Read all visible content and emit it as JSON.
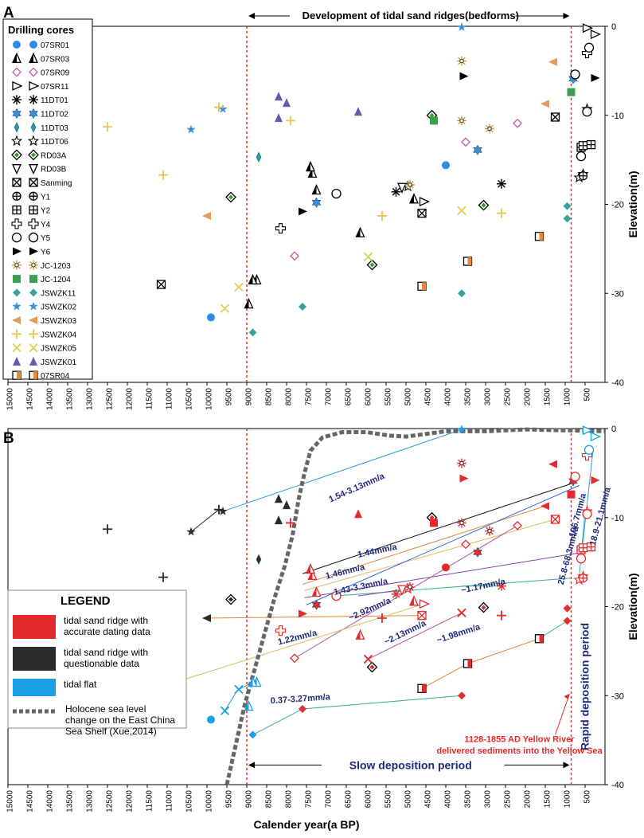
{
  "chart_data": [
    {
      "type": "scatter",
      "panel": "A",
      "title": "Development of tidal sand ridges(bedforms)",
      "xlabel": "",
      "ylabel": "Elevation(m)",
      "xlim": [
        15000,
        0
      ],
      "ylim": [
        -40,
        0
      ],
      "x_ticks": [
        15000,
        14500,
        14000,
        13500,
        13000,
        12500,
        12000,
        11500,
        11000,
        10500,
        10000,
        9500,
        9000,
        8500,
        8000,
        7500,
        7000,
        6500,
        6000,
        5500,
        5000,
        4500,
        4000,
        3500,
        3000,
        2500,
        2000,
        1500,
        1000,
        500
      ],
      "y_ticks": [
        0,
        -10,
        -20,
        -30,
        -40
      ],
      "vlines": [
        9000,
        850
      ],
      "legend_title": "Drilling cores",
      "series": [
        {
          "name": "07SR01",
          "marker": "circle-filled",
          "color": "#2e8ae6",
          "points": [
            [
              9900,
              -32.7
            ],
            [
              4000,
              -15.6
            ]
          ]
        },
        {
          "name": "07SR03",
          "marker": "tri-half",
          "color": "#000000",
          "points": [
            [
              8750,
              -28.5
            ],
            [
              8850,
              -28.5
            ],
            [
              8950,
              -31.2
            ],
            [
              7350,
              -16.5
            ],
            [
              7400,
              -15.8
            ],
            [
              7250,
              -18.4
            ],
            [
              6150,
              -23.2
            ],
            [
              4800,
              -19.4
            ]
          ]
        },
        {
          "name": "07SR09",
          "marker": "diamond-open",
          "color": "#c25aa8",
          "points": [
            [
              7800,
              -25.8
            ],
            [
              3500,
              -13.0
            ],
            [
              2200,
              -10.9
            ]
          ]
        },
        {
          "name": "07SR11",
          "marker": "tri-right-open",
          "color": "#000000",
          "points": [
            [
              4550,
              -19.7
            ],
            [
              450,
              -0.2
            ],
            [
              250,
              -0.9
            ]
          ]
        },
        {
          "name": "11DT01",
          "marker": "asterisk",
          "color": "#000000",
          "points": [
            [
              5250,
              -18.6
            ],
            [
              2600,
              -17.7
            ]
          ]
        },
        {
          "name": "11DT02",
          "marker": "star6-filled",
          "color": "#3b8fd9",
          "points": [
            [
              7250,
              -19.8
            ],
            [
              3200,
              -13.9
            ],
            [
              800,
              -5.9
            ]
          ]
        },
        {
          "name": "11DT03",
          "marker": "thin-diamond",
          "color": "#2a9aa6",
          "points": [
            [
              8700,
              -14.7
            ]
          ]
        },
        {
          "name": "11DT06",
          "marker": "star-open",
          "color": "#000000",
          "points": [
            [
              4950,
              -18.0
            ],
            [
              450,
              -9.3
            ],
            [
              550,
              -16.6
            ],
            [
              650,
              -17.0
            ]
          ]
        },
        {
          "name": "RD03A",
          "marker": "diamond-double",
          "color": "#3e9a3a",
          "points": [
            [
              9400,
              -19.2
            ],
            [
              5850,
              -26.8
            ],
            [
              4350,
              -10.0
            ],
            [
              3050,
              -20.1
            ]
          ]
        },
        {
          "name": "RD03B",
          "marker": "tri-down-open",
          "color": "#000000",
          "points": [
            [
              5100,
              -18.1
            ]
          ]
        },
        {
          "name": "Sanming",
          "marker": "square-x",
          "color": "#000000",
          "points": [
            [
              11150,
              -29.0
            ],
            [
              4600,
              -21.0
            ],
            [
              1250,
              -10.2
            ]
          ]
        },
        {
          "name": "Y1",
          "marker": "circle-plus",
          "color": "#000000",
          "points": [
            [
              550,
              -16.8
            ]
          ]
        },
        {
          "name": "Y2",
          "marker": "square-grid",
          "color": "#000000",
          "points": [
            [
              600,
              -13.6
            ],
            [
              550,
              -13.4
            ],
            [
              350,
              -13.3
            ]
          ]
        },
        {
          "name": "Y4",
          "marker": "plus-thick",
          "color": "#000000",
          "points": [
            [
              8150,
              -22.7
            ],
            [
              450,
              -3.0
            ]
          ]
        },
        {
          "name": "Y5",
          "marker": "circle-open",
          "color": "#000000",
          "points": [
            [
              6750,
              -18.8
            ],
            [
              750,
              -5.4
            ],
            [
              450,
              -9.6
            ],
            [
              400,
              -2.4
            ],
            [
              600,
              -14.6
            ]
          ]
        },
        {
          "name": "Y6",
          "marker": "tri-right-filled",
          "color": "#000000",
          "points": [
            [
              7600,
              -20.8
            ],
            [
              3550,
              -5.6
            ],
            [
              250,
              -5.8
            ]
          ]
        },
        {
          "name": "JC-1203",
          "marker": "sun",
          "color": "#c8a040",
          "points": [
            [
              3600,
              -3.9
            ],
            [
              3600,
              -10.6
            ],
            [
              4900,
              -17.8
            ],
            [
              2900,
              -11.5
            ]
          ]
        },
        {
          "name": "JC-1204",
          "marker": "square-filled",
          "color": "#3ca04a",
          "points": [
            [
              4300,
              -10.6
            ],
            [
              850,
              -7.4
            ]
          ]
        },
        {
          "name": "JSWZK11",
          "marker": "diamond-filled",
          "color": "#36a49a",
          "points": [
            [
              8850,
              -34.4
            ],
            [
              7600,
              -31.5
            ],
            [
              3600,
              -30.0
            ],
            [
              950,
              -20.2
            ],
            [
              950,
              -21.6
            ]
          ]
        },
        {
          "name": "JSWZK02",
          "marker": "star-filled",
          "color": "#3b8fd9",
          "points": [
            [
              9600,
              -9.3
            ],
            [
              10400,
              -11.6
            ],
            [
              3600,
              -0.1
            ]
          ]
        },
        {
          "name": "JSWZK03",
          "marker": "tri-left-filled",
          "color": "#e59a5a",
          "points": [
            [
              10000,
              -21.3
            ],
            [
              1300,
              -4.0
            ],
            [
              1500,
              -8.7
            ]
          ]
        },
        {
          "name": "JSWZK04",
          "marker": "plus",
          "color": "#eac256",
          "points": [
            [
              12500,
              -11.3
            ],
            [
              11100,
              -16.7
            ],
            [
              9700,
              -9.1
            ],
            [
              7900,
              -10.6
            ],
            [
              5600,
              -21.3
            ],
            [
              2600,
              -21.0
            ]
          ]
        },
        {
          "name": "JSWZK05",
          "marker": "x",
          "color": "#e0ce55",
          "points": [
            [
              9550,
              -31.7
            ],
            [
              9200,
              -29.3
            ],
            [
              5950,
              -25.9
            ],
            [
              3600,
              -20.7
            ]
          ]
        },
        {
          "name": "JSWZK01",
          "marker": "tri-up-filled",
          "color": "#6a58b0",
          "points": [
            [
              8200,
              -7.9
            ],
            [
              8000,
              -8.6
            ],
            [
              8200,
              -10.3
            ],
            [
              6200,
              -9.6
            ]
          ]
        },
        {
          "name": "07SR04",
          "marker": "square-half",
          "color": "#e38a3a",
          "points": [
            [
              4600,
              -29.2
            ],
            [
              3450,
              -26.4
            ],
            [
              1650,
              -23.6
            ]
          ]
        }
      ]
    },
    {
      "type": "scatter",
      "panel": "B",
      "xlabel": "Calender year(a BP)",
      "ylabel": "Elevation(m)",
      "xlim": [
        15000,
        0
      ],
      "ylim": [
        -40,
        0
      ],
      "x_ticks": [
        15000,
        14500,
        14000,
        13500,
        13000,
        12500,
        12000,
        11500,
        11000,
        10500,
        10000,
        9500,
        9000,
        8500,
        8000,
        7500,
        7000,
        6500,
        6000,
        5500,
        5000,
        4500,
        4000,
        3500,
        3000,
        2500,
        2000,
        1500,
        1000,
        500
      ],
      "y_ticks": [
        0,
        -10,
        -20,
        -30,
        -40
      ],
      "vlines": [
        9000,
        850
      ],
      "sea_level_curve": [
        [
          9500,
          -40
        ],
        [
          9300,
          -36
        ],
        [
          9050,
          -31
        ],
        [
          8800,
          -27
        ],
        [
          8550,
          -23
        ],
        [
          8300,
          -19
        ],
        [
          8050,
          -15.5
        ],
        [
          7850,
          -12
        ],
        [
          7700,
          -8
        ],
        [
          7550,
          -5
        ],
        [
          7400,
          -2.5
        ],
        [
          7100,
          -1
        ],
        [
          6600,
          -0.4
        ],
        [
          6000,
          -0.4
        ],
        [
          5400,
          -0.8
        ],
        [
          5000,
          -0.9
        ],
        [
          4000,
          -0.3
        ],
        [
          3000,
          -0.3
        ],
        [
          2000,
          -0.1
        ],
        [
          1000,
          -0.2
        ],
        [
          0,
          -0.3
        ]
      ],
      "rates": [
        "1.54-3.13mm/a",
        "1.44mm/a",
        "1.46mm/a",
        "1.43-3.3mm/a",
        "~2.92mm/a",
        "~1.17mm/a",
        "1.22mm/a",
        "~2.13mm/a",
        "~1.98mm/a",
        "0.37-3.27mm/a",
        "~106.7mm/a",
        "25.8-68.3mm/a",
        "18.9-21.1mm/a"
      ],
      "periods": {
        "slow": "Slow deposition period",
        "rapid": "Rapid deposition period"
      },
      "annotation": [
        "1128-1855 AD Yellow River",
        "delivered sediments into the Yellow Sea"
      ],
      "legend_title": "LEGEND",
      "legend": [
        {
          "label": [
            "tidal sand ridge with",
            "accurate dating data"
          ],
          "color": "#e42a2a"
        },
        {
          "label": [
            "tidal sand ridge with",
            "questionable  data"
          ],
          "color": "#2b2b2b"
        },
        {
          "label": [
            "tidal flat"
          ],
          "color": "#1aa0e6"
        },
        {
          "label": [
            "Holocene sea level",
            "change on the East China",
            "Sea Shelf (Xue,2014)"
          ],
          "color": "#666666"
        }
      ]
    }
  ],
  "labels": {
    "panel_a": "A",
    "panel_b": "B",
    "dev_title": "Development of tidal sand ridges(bedforms)",
    "y_title": "Elevation(m)",
    "x_title": "Calender year(a BP)",
    "legend_a_title": "Drilling cores",
    "legend_b_title": "LEGEND"
  }
}
